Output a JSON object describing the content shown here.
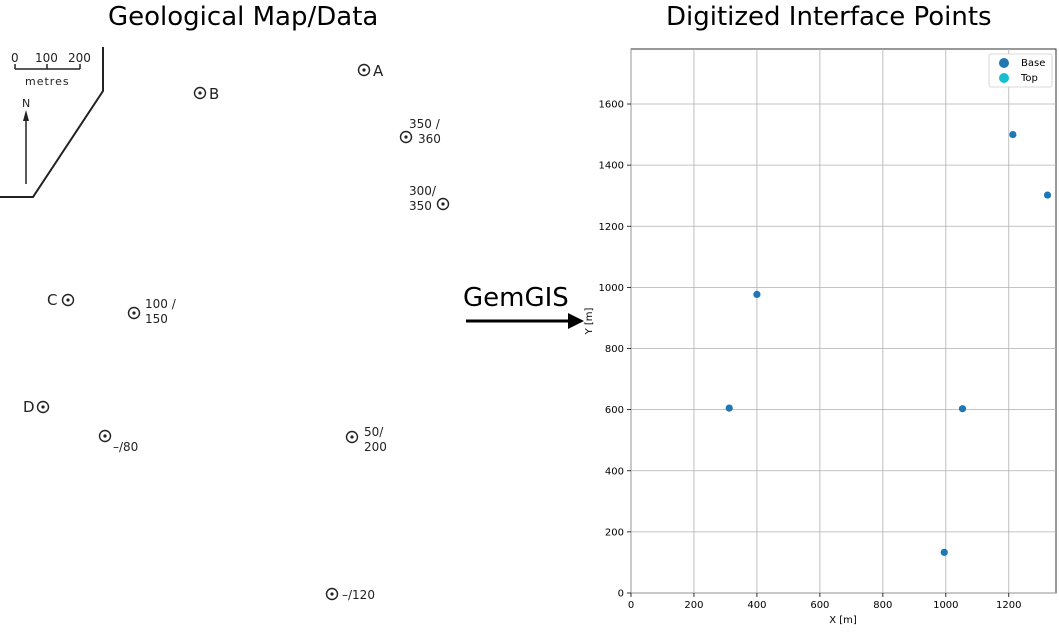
{
  "titles": {
    "left": "Geological Map/Data",
    "right": "Digitized Interface Points"
  },
  "arrow_label": "GemGIS",
  "map": {
    "scale_labels": [
      "0",
      "100",
      "200"
    ],
    "scale_unit": "metres",
    "north_label": "N",
    "wells": [
      {
        "label": "A",
        "annotation": []
      },
      {
        "label": "B",
        "annotation": []
      },
      {
        "label": "",
        "annotation": [
          "350 /",
          "360"
        ]
      },
      {
        "label": "",
        "annotation": [
          "300/",
          "350"
        ]
      },
      {
        "label": "C",
        "annotation": []
      },
      {
        "label": "",
        "annotation": [
          "100 /",
          "150"
        ]
      },
      {
        "label": "D",
        "annotation": []
      },
      {
        "label": "",
        "annotation": [
          "–/80"
        ]
      },
      {
        "label": "",
        "annotation": [
          "50/",
          "200"
        ]
      },
      {
        "label": "",
        "annotation": [
          "–/120"
        ]
      }
    ]
  },
  "chart_data": {
    "type": "scatter",
    "title": "Digitized Interface Points",
    "xlabel": "X [m]",
    "ylabel": "Y [m]",
    "xlim": [
      0,
      1350
    ],
    "ylim": [
      0,
      1780
    ],
    "xticks": [
      0,
      200,
      400,
      600,
      800,
      1000,
      1200
    ],
    "yticks": [
      0,
      200,
      400,
      600,
      800,
      1000,
      1200,
      1400,
      1600
    ],
    "grid": true,
    "legend_position": "top-right",
    "series": [
      {
        "name": "Base",
        "color": "#1f77b4",
        "points": [
          [
            1213,
            1500
          ],
          [
            1323,
            1302
          ],
          [
            400,
            977
          ],
          [
            312,
            605
          ],
          [
            1053,
            603
          ],
          [
            995,
            133
          ]
        ]
      },
      {
        "name": "Top",
        "color": "#17becf",
        "points": []
      }
    ]
  }
}
